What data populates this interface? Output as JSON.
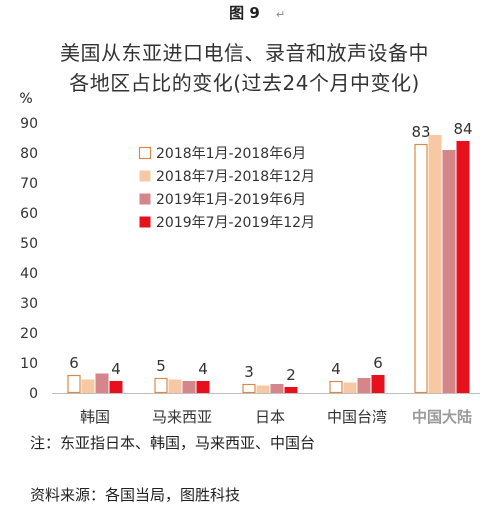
{
  "figure_label": "图 9",
  "para_mark": "↵",
  "footnote": "注：东亚指日本、韩国，马来西亚、中国台",
  "source": "资料来源：各国当局，图胜科技",
  "chart_data": {
    "type": "bar",
    "title": "美国从东亚进口电信、录音和放声设备中各地区占比的变化(过去24个月中变化)",
    "title_lines": [
      "美国从东亚进口电信、录音和放声设备中",
      "各地区占比的变化(过去24个月中变化)"
    ],
    "ylabel": "%",
    "xlabel": "",
    "ylim": [
      0,
      90
    ],
    "yticks": [
      0,
      10,
      20,
      30,
      40,
      50,
      60,
      70,
      80,
      90
    ],
    "grid": false,
    "legend_position": "top-center",
    "categories": [
      "韩国",
      "马来西亚",
      "日本",
      "中国台湾",
      "中国大陆"
    ],
    "series": [
      {
        "name": "2018年1月-2018年6月",
        "color": "#ffffff",
        "stroke": "#d98a4a",
        "values": [
          6,
          5,
          3,
          4,
          83
        ]
      },
      {
        "name": "2018年7月-2018年12月",
        "color": "#f6c8a4",
        "stroke": "#f6c8a4",
        "values": [
          4.5,
          4.5,
          2.5,
          3.5,
          86
        ]
      },
      {
        "name": "2019年1月-2019年6月",
        "color": "#d5868a",
        "stroke": "#d5868a",
        "values": [
          6.5,
          4,
          3,
          5,
          81
        ]
      },
      {
        "name": "2019年7月-2019年12月",
        "color": "#e8101c",
        "stroke": "#e8101c",
        "values": [
          4,
          4,
          2,
          6,
          84
        ]
      }
    ],
    "data_labels": [
      {
        "category": 0,
        "series": 0,
        "text": "6"
      },
      {
        "category": 0,
        "series": 3,
        "text": "4"
      },
      {
        "category": 1,
        "series": 0,
        "text": "5"
      },
      {
        "category": 1,
        "series": 3,
        "text": "4"
      },
      {
        "category": 2,
        "series": 0,
        "text": "3"
      },
      {
        "category": 2,
        "series": 3,
        "text": "2"
      },
      {
        "category": 3,
        "series": 0,
        "text": "4"
      },
      {
        "category": 3,
        "series": 3,
        "text": "6"
      },
      {
        "category": 4,
        "series": 0,
        "text": "83"
      },
      {
        "category": 4,
        "series": 3,
        "text": "84"
      }
    ]
  }
}
